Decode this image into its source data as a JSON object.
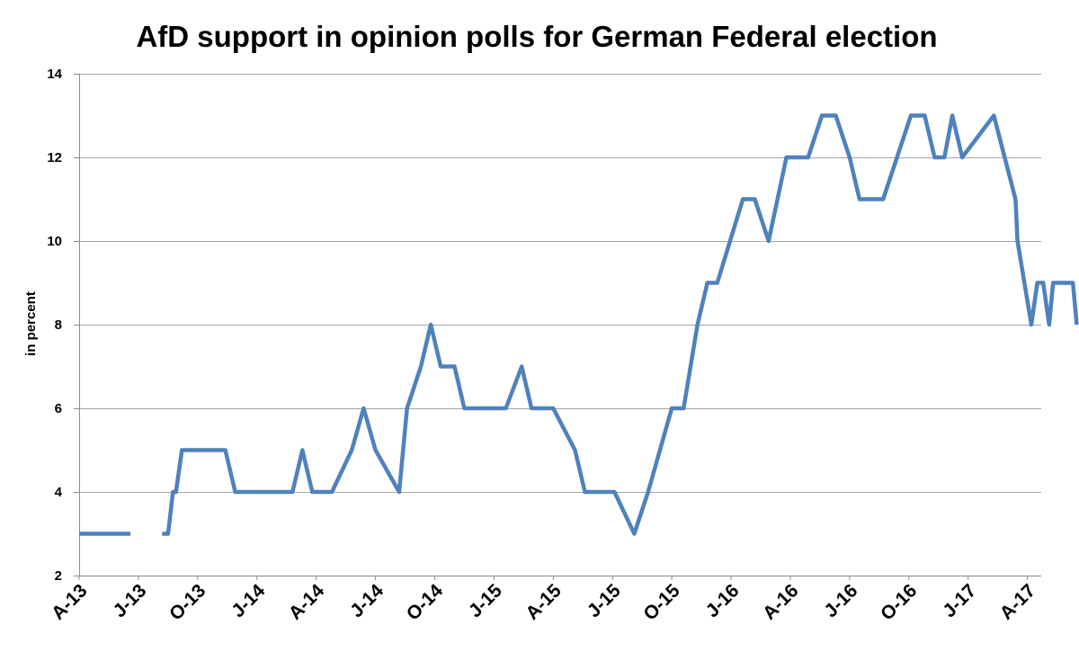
{
  "chart_data": {
    "type": "line",
    "title": "AfD support in opinion polls for German Federal election",
    "xlabel": "",
    "ylabel": "in percent",
    "ylim": [
      2,
      14
    ],
    "yticks": [
      2,
      4,
      6,
      8,
      10,
      12,
      14
    ],
    "xlim": [
      0,
      48.7
    ],
    "grid": true,
    "legend": "none",
    "x_unit": "months since April 2013",
    "xticks": [
      {
        "label": "A-13",
        "x": 0
      },
      {
        "label": "J-13",
        "x": 3
      },
      {
        "label": "O-13",
        "x": 6
      },
      {
        "label": "J-14",
        "x": 9
      },
      {
        "label": "A-14",
        "x": 12
      },
      {
        "label": "J-14",
        "x": 15
      },
      {
        "label": "O-14",
        "x": 18
      },
      {
        "label": "J-15",
        "x": 21
      },
      {
        "label": "A-15",
        "x": 24
      },
      {
        "label": "J-15",
        "x": 27
      },
      {
        "label": "O-15",
        "x": 30
      },
      {
        "label": "J-16",
        "x": 33
      },
      {
        "label": "A-16",
        "x": 36
      },
      {
        "label": "J-16",
        "x": 39
      },
      {
        "label": "O-16",
        "x": 42
      },
      {
        "label": "J-17",
        "x": 45
      },
      {
        "label": "A-17",
        "x": 48
      }
    ],
    "series": [
      {
        "name": "AfD",
        "color": "#4f81bd",
        "segments": [
          [
            [
              0,
              3
            ],
            [
              2.6,
              3
            ]
          ],
          [
            [
              4.2,
              3
            ],
            [
              4.5,
              3
            ],
            [
              4.75,
              4
            ],
            [
              4.9,
              4
            ],
            [
              5.2,
              5
            ],
            [
              7.4,
              5
            ],
            [
              7.9,
              4
            ],
            [
              10.8,
              4
            ],
            [
              11.3,
              5
            ],
            [
              11.8,
              4
            ],
            [
              12.8,
              4
            ],
            [
              13.8,
              5
            ],
            [
              14.4,
              6
            ],
            [
              15,
              5
            ],
            [
              16.2,
              4
            ],
            [
              16.6,
              6
            ],
            [
              17.3,
              7
            ],
            [
              17.8,
              8
            ],
            [
              18.3,
              7
            ],
            [
              19,
              7
            ],
            [
              19.5,
              6
            ],
            [
              21.6,
              6
            ],
            [
              22.4,
              7
            ],
            [
              22.9,
              6
            ],
            [
              24,
              6
            ],
            [
              25.1,
              5
            ],
            [
              25.6,
              4
            ],
            [
              27.1,
              4
            ],
            [
              28.1,
              3
            ],
            [
              28.8,
              4
            ],
            [
              30,
              6
            ],
            [
              30.6,
              6
            ],
            [
              31.3,
              8
            ],
            [
              31.8,
              9
            ],
            [
              32.3,
              9
            ],
            [
              33.6,
              11
            ],
            [
              34.2,
              11
            ],
            [
              34.9,
              10
            ],
            [
              35.8,
              12
            ],
            [
              36.9,
              12
            ],
            [
              37.6,
              13
            ],
            [
              38.3,
              13
            ],
            [
              39,
              12
            ],
            [
              39.5,
              11
            ],
            [
              40.7,
              11
            ],
            [
              41.4,
              12
            ],
            [
              42.1,
              13
            ],
            [
              42.8,
              13
            ],
            [
              43.3,
              12
            ],
            [
              43.8,
              12
            ],
            [
              44.2,
              13
            ],
            [
              44.7,
              12
            ],
            [
              46.3,
              13
            ],
            [
              47.4,
              11
            ],
            [
              47.5,
              10
            ],
            [
              48.2,
              8
            ],
            [
              48.5,
              9
            ],
            [
              48.8,
              9
            ],
            [
              49.1,
              8
            ],
            [
              49.3,
              9
            ],
            [
              50.3,
              9
            ],
            [
              50.5,
              8
            ]
          ]
        ]
      }
    ]
  }
}
